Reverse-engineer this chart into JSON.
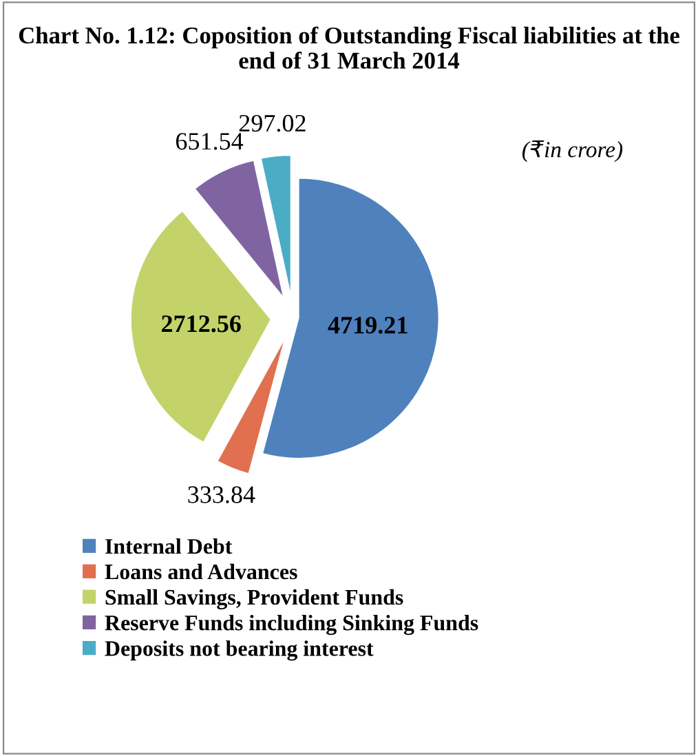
{
  "chart_data": {
    "type": "pie",
    "title": "Chart No. 1.12: Coposition of Outstanding Fiscal liabilities at the end of 31 March 2014",
    "annotations": [
      "(₹in crore)"
    ],
    "categories": [
      "Internal Debt",
      "Loans and Advances",
      "Small Savings, Provident Funds",
      "Reserve Funds including Sinking Funds",
      "Deposits not bearing interest"
    ],
    "values": [
      4719.21,
      333.84,
      2712.56,
      651.54,
      297.02
    ],
    "colors": [
      "#4f81bd",
      "#e0704f",
      "#c3d36a",
      "#8064a2",
      "#4bacc6"
    ],
    "data_labels": true,
    "legend": "bottom left"
  }
}
